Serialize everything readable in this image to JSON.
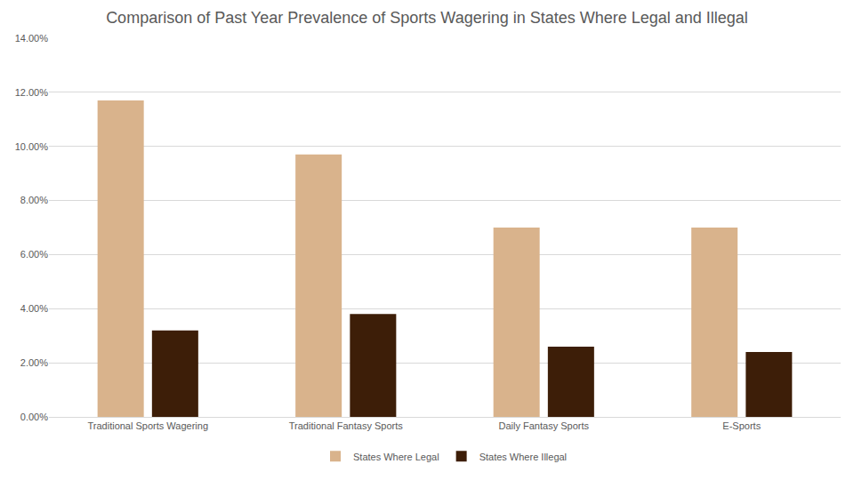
{
  "chart_data": {
    "type": "bar",
    "title": "Comparison of Past Year Prevalence of Sports Wagering in States Where Legal and Illegal",
    "categories": [
      "Traditional Sports Wagering",
      "Traditional Fantasy Sports",
      "Daily Fantasy Sports",
      "E-Sports"
    ],
    "series": [
      {
        "name": "States Where Legal",
        "color": "#d9b38c",
        "values": [
          11.7,
          9.7,
          7.0,
          7.0
        ]
      },
      {
        "name": "States Where Illegal",
        "color": "#3d1e08",
        "values": [
          3.2,
          3.8,
          2.6,
          2.4
        ]
      }
    ],
    "ylim": [
      0,
      14
    ],
    "yticks": [
      {
        "value": 0,
        "label": "0.00%"
      },
      {
        "value": 2,
        "label": "2.00%"
      },
      {
        "value": 4,
        "label": "4.00%"
      },
      {
        "value": 6,
        "label": "6.00%"
      },
      {
        "value": 8,
        "label": "8.00%"
      },
      {
        "value": 10,
        "label": "10.00%"
      },
      {
        "value": 12,
        "label": "12.00%"
      },
      {
        "value": 14,
        "label": "14.00%"
      }
    ],
    "grid": true,
    "legend": "bottom"
  }
}
